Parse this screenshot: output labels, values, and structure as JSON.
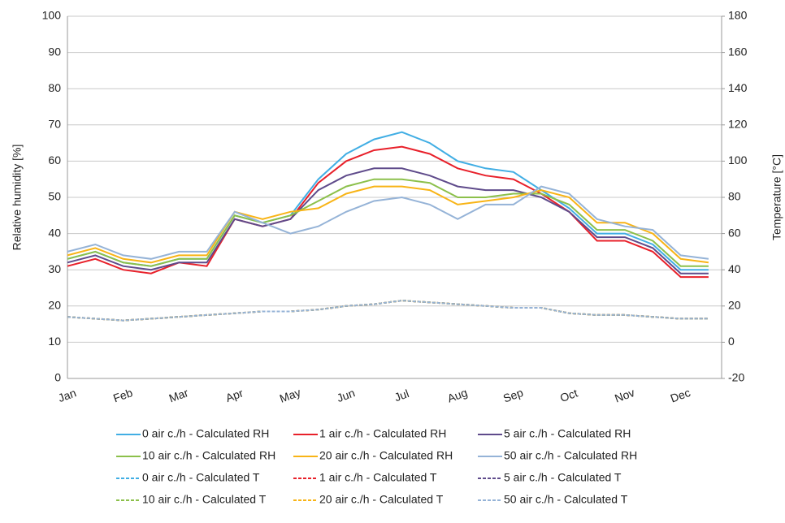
{
  "chart_data": {
    "type": "line",
    "y_label": "Relative humidity [%]",
    "y2_label": "Temperature [°C]",
    "categories": [
      "Jan",
      null,
      "Feb",
      null,
      "Mar",
      null,
      "Apr",
      null,
      "May",
      null,
      "Jun",
      null,
      "Jul",
      null,
      "Aug",
      null,
      "Sep",
      null,
      "Oct",
      null,
      "Nov",
      null,
      "Dec",
      null
    ],
    "ylim": [
      0,
      100
    ],
    "yticks": [
      0,
      10,
      20,
      30,
      40,
      50,
      60,
      70,
      80,
      90,
      100
    ],
    "y2lim": [
      -20,
      180
    ],
    "y2ticks": [
      -20,
      0,
      20,
      40,
      60,
      80,
      100,
      120,
      140,
      160,
      180
    ],
    "grid": true,
    "series": [
      {
        "name": "0 air c./h - Calculated RH",
        "color": "#41aee4",
        "style": "solid",
        "values": [
          33,
          35,
          32,
          31,
          33,
          33,
          45,
          43,
          45,
          55,
          62,
          66,
          68,
          65,
          60,
          58,
          57,
          52,
          47,
          40,
          40,
          37,
          30,
          30
        ]
      },
      {
        "name": "1 air c./h - Calculated RH",
        "color": "#e8202a",
        "style": "solid",
        "values": [
          31,
          33,
          30,
          29,
          32,
          31,
          44,
          42,
          44,
          54,
          60,
          63,
          64,
          62,
          58,
          56,
          55,
          51,
          46,
          38,
          38,
          35,
          28,
          28
        ]
      },
      {
        "name": "5 air c./h - Calculated RH",
        "color": "#5f4b8b",
        "style": "solid",
        "values": [
          32,
          34,
          31,
          30,
          32,
          32,
          44,
          42,
          44,
          52,
          56,
          58,
          58,
          56,
          53,
          52,
          52,
          50,
          46,
          39,
          39,
          36,
          29,
          29
        ]
      },
      {
        "name": "10 air c./h - Calculated RH",
        "color": "#8cc04b",
        "style": "solid",
        "values": [
          33,
          35,
          32,
          31,
          33,
          33,
          45,
          43,
          45,
          49,
          53,
          55,
          55,
          54,
          50,
          50,
          51,
          51,
          48,
          41,
          41,
          38,
          31,
          31
        ]
      },
      {
        "name": "20 air c./h - Calculated RH",
        "color": "#f8b416",
        "style": "solid",
        "values": [
          34,
          36,
          33,
          32,
          34,
          34,
          46,
          44,
          46,
          47,
          51,
          53,
          53,
          52,
          48,
          49,
          50,
          52,
          50,
          43,
          43,
          40,
          33,
          32
        ]
      },
      {
        "name": "50 air c./h - Calculated RH",
        "color": "#95b3d7",
        "style": "solid",
        "values": [
          35,
          37,
          34,
          33,
          35,
          35,
          46,
          43,
          40,
          42,
          46,
          49,
          50,
          48,
          44,
          48,
          48,
          53,
          51,
          44,
          42,
          41,
          34,
          33
        ]
      },
      {
        "name": "0 air c./h - Calculated T",
        "color": "#41aee4",
        "style": "dashed",
        "axis": "y2",
        "values": [
          14,
          13,
          12,
          13,
          14,
          15,
          16,
          17,
          17,
          18,
          20,
          21,
          23,
          22,
          21,
          20,
          19,
          19,
          16,
          15,
          15,
          14,
          13,
          13
        ]
      },
      {
        "name": "1 air c./h - Calculated T",
        "color": "#e8202a",
        "style": "dashed",
        "axis": "y2",
        "values": [
          14,
          13,
          12,
          13,
          14,
          15,
          16,
          17,
          17,
          18,
          20,
          21,
          23,
          22,
          21,
          20,
          19,
          19,
          16,
          15,
          15,
          14,
          13,
          13
        ]
      },
      {
        "name": "5 air c./h - Calculated T",
        "color": "#5f4b8b",
        "style": "dashed",
        "axis": "y2",
        "values": [
          14,
          13,
          12,
          13,
          14,
          15,
          16,
          17,
          17,
          18,
          20,
          21,
          23,
          22,
          21,
          20,
          19,
          19,
          16,
          15,
          15,
          14,
          13,
          13
        ]
      },
      {
        "name": "10 air c./h - Calculated T",
        "color": "#8cc04b",
        "style": "dashed",
        "axis": "y2",
        "values": [
          14,
          13,
          12,
          13,
          14,
          15,
          16,
          17,
          17,
          18,
          20,
          21,
          23,
          22,
          21,
          20,
          19,
          19,
          16,
          15,
          15,
          14,
          13,
          13
        ]
      },
      {
        "name": "20 air c./h - Calculated T",
        "color": "#f8b416",
        "style": "dashed",
        "axis": "y2",
        "values": [
          14,
          13,
          12,
          13,
          14,
          15,
          16,
          17,
          17,
          18,
          20,
          21,
          23,
          22,
          21,
          20,
          19,
          19,
          16,
          15,
          15,
          14,
          13,
          13
        ]
      },
      {
        "name": "50 air c./h - Calculated T",
        "color": "#95b3d7",
        "style": "dashed",
        "axis": "y2",
        "values": [
          14,
          13,
          12,
          13,
          14,
          15,
          16,
          17,
          17,
          18,
          20,
          21,
          23,
          22,
          21,
          20,
          19,
          19,
          16,
          15,
          15,
          14,
          13,
          13
        ]
      }
    ]
  }
}
